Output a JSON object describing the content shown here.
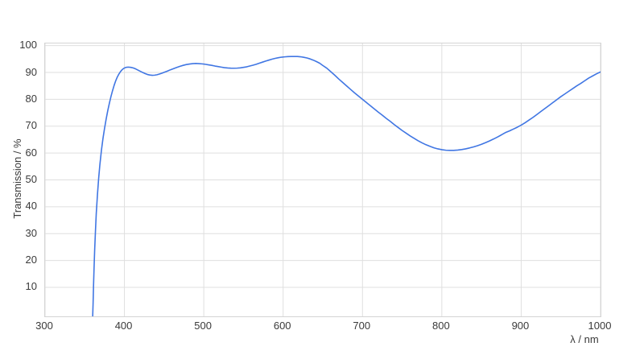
{
  "chart_data": {
    "type": "line",
    "title": "",
    "xlabel": "λ / nm",
    "ylabel": "Transmission / %",
    "xlim": [
      300,
      1000
    ],
    "ylim": [
      -0.8,
      100.8
    ],
    "x_ticks": [
      300,
      400,
      500,
      600,
      700,
      800,
      900,
      1000
    ],
    "y_ticks": [
      10,
      20,
      30,
      40,
      50,
      60,
      70,
      80,
      90,
      100
    ],
    "grid": true,
    "legend": false,
    "colors": {
      "line": "#4076e3",
      "grid": "#dfdfdf",
      "border": "#d4d4d4",
      "text": "#3a3a3a",
      "background": "#ffffff"
    },
    "series": [
      {
        "name": "Transmission",
        "points": [
          [
            360,
            -0.8
          ],
          [
            360.5,
            4
          ],
          [
            361,
            10
          ],
          [
            361.7,
            17
          ],
          [
            362.5,
            24
          ],
          [
            363.5,
            31
          ],
          [
            364.5,
            37.5
          ],
          [
            366,
            44.5
          ],
          [
            367.5,
            50.5
          ],
          [
            369,
            55.5
          ],
          [
            371,
            61
          ],
          [
            373,
            65.5
          ],
          [
            375,
            69.3
          ],
          [
            377,
            72.7
          ],
          [
            379,
            75.8
          ],
          [
            381,
            78.5
          ],
          [
            383,
            81
          ],
          [
            385,
            83.2
          ],
          [
            387,
            85.2
          ],
          [
            389,
            86.9
          ],
          [
            391,
            88.3
          ],
          [
            393,
            89.4
          ],
          [
            395,
            90.3
          ],
          [
            397,
            91
          ],
          [
            399,
            91.5
          ],
          [
            401,
            91.8
          ],
          [
            403,
            91.95
          ],
          [
            405,
            92
          ],
          [
            408,
            91.9
          ],
          [
            411,
            91.7
          ],
          [
            414,
            91.35
          ],
          [
            417,
            90.9
          ],
          [
            420,
            90.45
          ],
          [
            423,
            90
          ],
          [
            426,
            89.6
          ],
          [
            429,
            89.25
          ],
          [
            432,
            89.05
          ],
          [
            435,
            88.95
          ],
          [
            438,
            89
          ],
          [
            441,
            89.15
          ],
          [
            444,
            89.4
          ],
          [
            447,
            89.7
          ],
          [
            450,
            90.05
          ],
          [
            454,
            90.5
          ],
          [
            458,
            91
          ],
          [
            462,
            91.45
          ],
          [
            466,
            91.9
          ],
          [
            470,
            92.3
          ],
          [
            474,
            92.65
          ],
          [
            478,
            92.95
          ],
          [
            482,
            93.15
          ],
          [
            486,
            93.3
          ],
          [
            490,
            93.35
          ],
          [
            494,
            93.3
          ],
          [
            498,
            93.2
          ],
          [
            502,
            93.05
          ],
          [
            506,
            92.85
          ],
          [
            510,
            92.65
          ],
          [
            514,
            92.4
          ],
          [
            518,
            92.2
          ],
          [
            522,
            92
          ],
          [
            526,
            91.8
          ],
          [
            530,
            91.67
          ],
          [
            534,
            91.6
          ],
          [
            538,
            91.58
          ],
          [
            542,
            91.62
          ],
          [
            546,
            91.72
          ],
          [
            550,
            91.9
          ],
          [
            554,
            92.1
          ],
          [
            558,
            92.4
          ],
          [
            562,
            92.7
          ],
          [
            566,
            93.05
          ],
          [
            570,
            93.45
          ],
          [
            574,
            93.85
          ],
          [
            578,
            94.25
          ],
          [
            582,
            94.6
          ],
          [
            586,
            94.95
          ],
          [
            590,
            95.25
          ],
          [
            594,
            95.5
          ],
          [
            598,
            95.7
          ],
          [
            602,
            95.82
          ],
          [
            606,
            95.9
          ],
          [
            610,
            95.95
          ],
          [
            614,
            95.97
          ],
          [
            618,
            95.95
          ],
          [
            622,
            95.85
          ],
          [
            626,
            95.65
          ],
          [
            630,
            95.4
          ],
          [
            634,
            95.05
          ],
          [
            638,
            94.6
          ],
          [
            642,
            94.05
          ],
          [
            646,
            93.45
          ],
          [
            650,
            92.6
          ],
          [
            655,
            91.6
          ],
          [
            660,
            90.3
          ],
          [
            665,
            89
          ],
          [
            670,
            87.6
          ],
          [
            675,
            86.3
          ],
          [
            680,
            85
          ],
          [
            685,
            83.7
          ],
          [
            690,
            82.4
          ],
          [
            695,
            81.2
          ],
          [
            700,
            80
          ],
          [
            705,
            78.8
          ],
          [
            710,
            77.6
          ],
          [
            715,
            76.4
          ],
          [
            720,
            75.2
          ],
          [
            725,
            74.1
          ],
          [
            730,
            72.9
          ],
          [
            735,
            71.8
          ],
          [
            740,
            70.6
          ],
          [
            745,
            69.5
          ],
          [
            750,
            68.4
          ],
          [
            755,
            67.4
          ],
          [
            760,
            66.4
          ],
          [
            765,
            65.5
          ],
          [
            770,
            64.6
          ],
          [
            775,
            63.8
          ],
          [
            780,
            63.1
          ],
          [
            785,
            62.5
          ],
          [
            790,
            61.95
          ],
          [
            795,
            61.55
          ],
          [
            800,
            61.25
          ],
          [
            805,
            61.05
          ],
          [
            810,
            61
          ],
          [
            815,
            61
          ],
          [
            820,
            61.1
          ],
          [
            825,
            61.3
          ],
          [
            830,
            61.55
          ],
          [
            835,
            61.9
          ],
          [
            840,
            62.3
          ],
          [
            845,
            62.75
          ],
          [
            850,
            63.25
          ],
          [
            855,
            63.85
          ],
          [
            860,
            64.5
          ],
          [
            865,
            65.2
          ],
          [
            870,
            65.95
          ],
          [
            875,
            66.75
          ],
          [
            880,
            67.6
          ],
          [
            885,
            68.2
          ],
          [
            890,
            68.9
          ],
          [
            895,
            69.6
          ],
          [
            900,
            70.4
          ],
          [
            905,
            71.3
          ],
          [
            910,
            72.3
          ],
          [
            915,
            73.3
          ],
          [
            920,
            74.4
          ],
          [
            925,
            75.5
          ],
          [
            930,
            76.6
          ],
          [
            935,
            77.7
          ],
          [
            940,
            78.8
          ],
          [
            945,
            79.9
          ],
          [
            950,
            81
          ],
          [
            955,
            82
          ],
          [
            960,
            83
          ],
          [
            965,
            84
          ],
          [
            970,
            85
          ],
          [
            975,
            85.9
          ],
          [
            980,
            86.9
          ],
          [
            985,
            87.9
          ],
          [
            990,
            88.7
          ],
          [
            995,
            89.5
          ],
          [
            1000,
            90.2
          ]
        ]
      }
    ]
  }
}
